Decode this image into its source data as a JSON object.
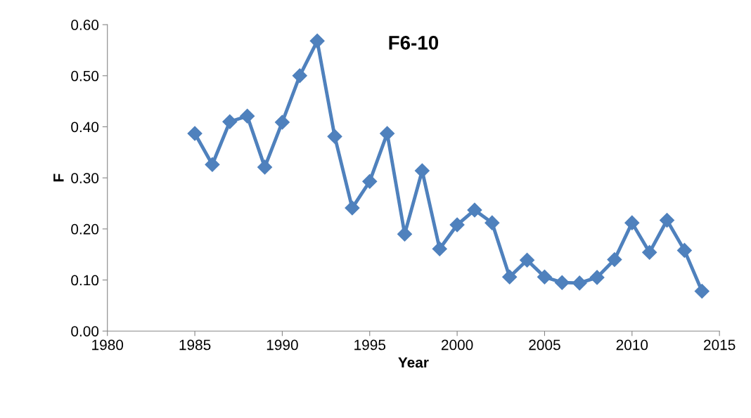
{
  "chart_data": {
    "type": "line",
    "title": "F6-10",
    "xlabel": "Year",
    "ylabel": "F",
    "x": [
      1985,
      1986,
      1987,
      1988,
      1989,
      1990,
      1991,
      1992,
      1993,
      1994,
      1995,
      1996,
      1997,
      1998,
      1999,
      2000,
      2001,
      2002,
      2003,
      2004,
      2005,
      2006,
      2007,
      2008,
      2009,
      2010,
      2011,
      2012,
      2013,
      2014
    ],
    "series": [
      {
        "color": "#4f81bd",
        "values": [
          0.387,
          0.326,
          0.41,
          0.421,
          0.321,
          0.409,
          0.5,
          0.568,
          0.381,
          0.241,
          0.293,
          0.387,
          0.19,
          0.314,
          0.161,
          0.208,
          0.237,
          0.212,
          0.106,
          0.139,
          0.106,
          0.095,
          0.094,
          0.105,
          0.14,
          0.212,
          0.154,
          0.217,
          0.158,
          0.078
        ]
      }
    ],
    "xlim": [
      1980,
      2015
    ],
    "xticks": [
      1980,
      1985,
      1990,
      1995,
      2000,
      2005,
      2010,
      2015
    ],
    "ylim": [
      0,
      0.6
    ],
    "yticks": [
      {
        "value": 0,
        "label": "0.00"
      },
      {
        "value": 0.1,
        "label": "0.10"
      },
      {
        "value": 0.2,
        "label": "0.20"
      },
      {
        "value": 0.3,
        "label": "0.30"
      },
      {
        "value": 0.4,
        "label": "0.40"
      },
      {
        "value": 0.5,
        "label": "0.50"
      },
      {
        "value": 0.6,
        "label": "0.60"
      }
    ],
    "grid": false,
    "legend": false,
    "marker": "diamond",
    "line_style": "solid"
  }
}
